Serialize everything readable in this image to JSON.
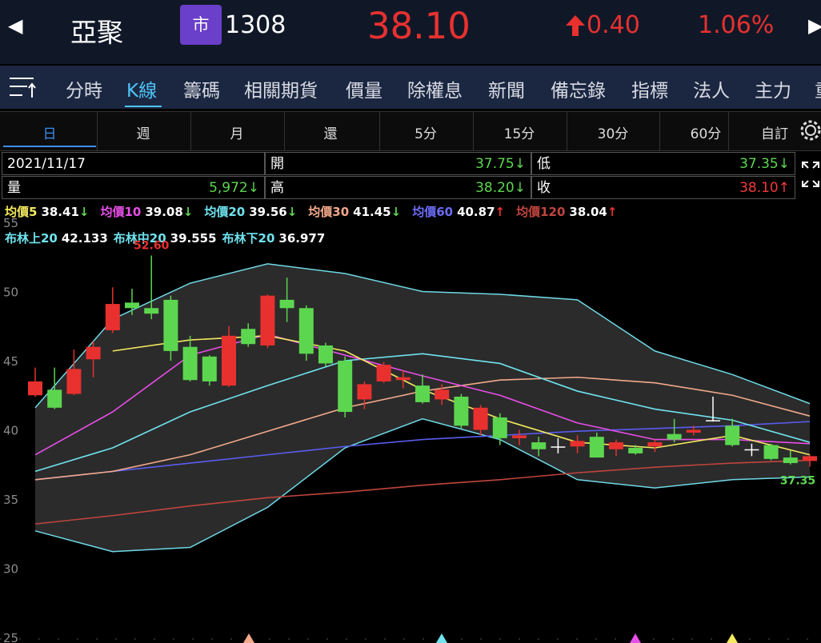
{
  "header": {
    "back": "◀",
    "name": "亞聚",
    "market": "市",
    "code": "1308",
    "price": "38.10",
    "change": "0.40",
    "change_pct": "1.06%",
    "forward": "▶"
  },
  "tabs": [
    "分時",
    "K線",
    "籌碼",
    "相關期貨",
    "價量",
    "除權息",
    "新聞",
    "備忘錄",
    "指標",
    "法人",
    "主力",
    "重"
  ],
  "active_tab": 1,
  "periods": [
    "日",
    "週",
    "月",
    "還",
    "5分",
    "15分",
    "30分",
    "60分",
    "自訂"
  ],
  "active_period": 0,
  "info": [
    [
      {
        "label": "2021/11/17"
      },
      {
        "label": "開",
        "value": "37.75↓",
        "color": "#5cd64f"
      },
      {
        "label": "低",
        "value": "37.35↓",
        "color": "#5cd64f"
      }
    ],
    [
      {
        "label": "量",
        "value": "5,972↓",
        "color": "#5cd64f"
      },
      {
        "label": "高",
        "value": "38.20↓",
        "color": "#5cd64f"
      },
      {
        "label": "收",
        "value": "38.10↑",
        "color": "#f0393c"
      }
    ]
  ],
  "ma_legend": [
    {
      "name": "均價5",
      "value": "38.41",
      "arrow": "↓",
      "color": "#f3ea5f"
    },
    {
      "name": "均價10",
      "value": "39.08",
      "arrow": "↓",
      "color": "#e84ee8"
    },
    {
      "name": "均價20",
      "value": "39.56",
      "arrow": "↓",
      "color": "#6fe3ee"
    },
    {
      "name": "均價30",
      "value": "41.45",
      "arrow": "↓",
      "color": "#f2a98a"
    },
    {
      "name": "均價60",
      "value": "40.87",
      "arrow": "↑",
      "color": "#6a6cf5"
    },
    {
      "name": "均價120",
      "value": "38.04",
      "arrow": "↑",
      "color": "#c0453e"
    }
  ],
  "boll_legend": [
    {
      "name": "布林上20",
      "value": "42.133"
    },
    {
      "name": "布林中20",
      "value": "39.555"
    },
    {
      "name": "布林下20",
      "value": "36.977"
    }
  ],
  "chart_data": {
    "type": "candlestick",
    "ylim": [
      25,
      55
    ],
    "yticks": [
      25,
      30,
      35,
      40,
      45,
      50,
      55
    ],
    "up_color": "#e8312f",
    "down_color": "#5cd64f",
    "flat_color": "#ffffff",
    "open": [
      42.5,
      42.9,
      42.6,
      45.1,
      47.2,
      49.2,
      48.8,
      49.4,
      46.0,
      45.3,
      43.2,
      47.3,
      46.1,
      49.4,
      48.8,
      46.1,
      45.0,
      42.2,
      43.5,
      43.6,
      43.2,
      42.2,
      42.4,
      40.0,
      40.9,
      39.4,
      39.1,
      38.8,
      38.8,
      39.5,
      38.6,
      38.7,
      38.8,
      39.7,
      39.8,
      40.7,
      40.3,
      38.6,
      38.9,
      38.0,
      37.75
    ],
    "high": [
      44.5,
      44.5,
      45.8,
      46.4,
      50.3,
      50.2,
      52.6,
      49.7,
      46.8,
      45.4,
      47.5,
      47.7,
      49.8,
      51.0,
      49.0,
      46.3,
      45.3,
      43.5,
      44.9,
      44.3,
      44.0,
      43.3,
      42.6,
      41.8,
      41.2,
      40.0,
      39.5,
      39.4,
      39.6,
      39.8,
      39.3,
      38.9,
      39.3,
      40.8,
      40.3,
      42.4,
      40.8,
      39.0,
      39.0,
      38.5,
      38.2
    ],
    "low": [
      42.4,
      41.5,
      42.5,
      43.8,
      47.0,
      48.3,
      48.0,
      45.0,
      43.5,
      43.2,
      43.1,
      46.0,
      45.9,
      47.8,
      45.0,
      44.6,
      40.9,
      41.5,
      43.4,
      43.0,
      41.9,
      41.8,
      40.1,
      39.6,
      38.9,
      38.9,
      38.1,
      38.3,
      38.3,
      38.0,
      38.1,
      38.2,
      38.4,
      39.1,
      39.6,
      40.6,
      38.8,
      38.1,
      37.8,
      37.5,
      37.35
    ],
    "close": [
      43.5,
      41.6,
      44.4,
      46.0,
      49.1,
      48.8,
      48.4,
      45.7,
      43.6,
      43.5,
      46.8,
      46.2,
      49.7,
      48.8,
      45.5,
      44.8,
      41.3,
      43.3,
      44.7,
      43.8,
      42.0,
      42.9,
      40.3,
      41.6,
      39.4,
      39.6,
      38.6,
      38.8,
      39.2,
      38.0,
      39.1,
      38.3,
      39.1,
      39.3,
      40.0,
      40.7,
      38.9,
      38.6,
      37.9,
      37.6,
      38.1
    ],
    "high_label": "52.60",
    "low_label": "37.35",
    "line_x": [
      0,
      4,
      8,
      12,
      16,
      20,
      24,
      28,
      32,
      36,
      40
    ],
    "bollinger": {
      "color": "#6fd9e6",
      "fill": "#2b2b2b",
      "upper": [
        41.6,
        48.0,
        50.6,
        52.0,
        51.3,
        50.0,
        49.8,
        49.4,
        45.7,
        44.0,
        41.9
      ],
      "lower": [
        32.7,
        31.2,
        31.5,
        34.4,
        38.7,
        40.8,
        39.3,
        36.4,
        35.8,
        36.4,
        36.6
      ]
    },
    "series": [
      {
        "color": "#c0453e",
        "values": [
          33.2,
          33.8,
          34.5,
          35.1,
          35.5,
          36.0,
          36.4,
          36.9,
          37.3,
          37.6,
          37.8
        ]
      },
      {
        "color": "#5a5cf0",
        "values": [
          36.4,
          37.0,
          37.6,
          38.2,
          38.8,
          39.3,
          39.6,
          39.9,
          40.1,
          40.3,
          40.6
        ]
      },
      {
        "color": "#f2a98a",
        "values": [
          36.4,
          37.0,
          38.2,
          39.9,
          41.6,
          42.8,
          43.6,
          43.8,
          43.4,
          42.5,
          41.0
        ]
      },
      {
        "color": "#6fe3ee",
        "values": [
          37.0,
          38.7,
          41.3,
          43.2,
          45.0,
          45.5,
          44.8,
          42.8,
          41.5,
          40.7,
          39.1
        ]
      },
      {
        "color": "#e84ee8",
        "values": [
          38.2,
          41.3,
          45.4,
          46.9,
          45.4,
          43.9,
          42.5,
          40.5,
          39.3,
          39.3,
          39.0
        ]
      },
      {
        "color": "#f3ea5f",
        "values": [
          null,
          45.7,
          46.5,
          46.8,
          45.7,
          42.9,
          40.8,
          39.1,
          38.7,
          39.6,
          38.2
        ]
      }
    ]
  }
}
